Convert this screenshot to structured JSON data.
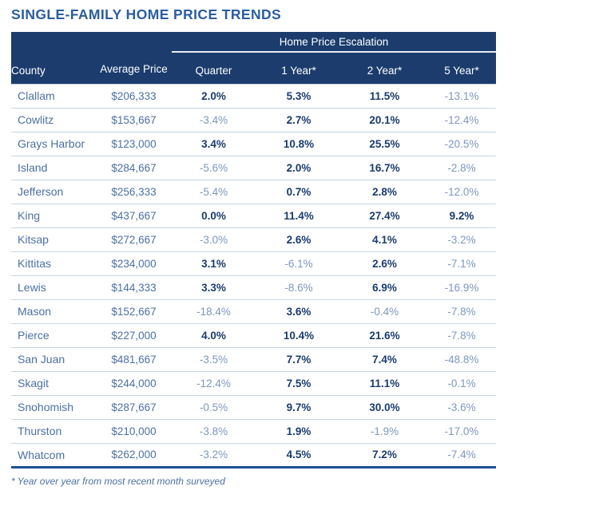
{
  "page_title": "SINGLE-FAMILY HOME PRICE TRENDS",
  "chart_data": {
    "type": "table",
    "title": "SINGLE-FAMILY HOME PRICE TRENDS",
    "group_header": "Home Price Escalation",
    "columns": [
      "County",
      "Average Price",
      "Quarter",
      "1 Year*",
      "2 Year*",
      "5 Year*"
    ],
    "rows": [
      [
        "Clallam",
        "$206,333",
        "2.0%",
        "5.3%",
        "11.5%",
        "-13.1%"
      ],
      [
        "Cowlitz",
        "$153,667",
        "-3.4%",
        "2.7%",
        "20.1%",
        "-12.4%"
      ],
      [
        "Grays Harbor",
        "$123,000",
        "3.4%",
        "10.8%",
        "25.5%",
        "-20.5%"
      ],
      [
        "Island",
        "$284,667",
        "-5.6%",
        "2.0%",
        "16.7%",
        "-2.8%"
      ],
      [
        "Jefferson",
        "$256,333",
        "-5.4%",
        "0.7%",
        "2.8%",
        "-12.0%"
      ],
      [
        "King",
        "$437,667",
        "0.0%",
        "11.4%",
        "27.4%",
        "9.2%"
      ],
      [
        "Kitsap",
        "$272,667",
        "-3.0%",
        "2.6%",
        "4.1%",
        "-3.2%"
      ],
      [
        "Kittitas",
        "$234,000",
        "3.1%",
        "-6.1%",
        "2.6%",
        "-7.1%"
      ],
      [
        "Lewis",
        "$144,333",
        "3.3%",
        "-8.6%",
        "6.9%",
        "-16.9%"
      ],
      [
        "Mason",
        "$152,667",
        "-18.4%",
        "3.6%",
        "-0.4%",
        "-7.8%"
      ],
      [
        "Pierce",
        "$227,000",
        "4.0%",
        "10.4%",
        "21.6%",
        "-7.8%"
      ],
      [
        "San Juan",
        "$481,667",
        "-3.5%",
        "7.7%",
        "7.4%",
        "-48.8%"
      ],
      [
        "Skagit",
        "$244,000",
        "-12.4%",
        "7.5%",
        "11.1%",
        "-0.1%"
      ],
      [
        "Snohomish",
        "$287,667",
        "-0.5%",
        "9.7%",
        "30.0%",
        "-3.6%"
      ],
      [
        "Thurston",
        "$210,000",
        "-3.8%",
        "1.9%",
        "-1.9%",
        "-17.0%"
      ],
      [
        "Whatcom",
        "$262,000",
        "-3.2%",
        "4.5%",
        "7.2%",
        "-7.4%"
      ]
    ],
    "footnote": "* Year over year from most recent month surveyed",
    "value_style_rule": "positive values bold dark navy, negative values light blue regular"
  },
  "colors": {
    "header_background": "#1b3c6d",
    "header_text": "#ffffff",
    "title_text": "#2b5d9e",
    "county_and_price_text": "#4c70a4",
    "positive_value_text": "#1b3c6d",
    "negative_value_text": "#7e97bf",
    "row_divider": "#c9d5e6",
    "table_bottom_border": "#1d4f97"
  }
}
